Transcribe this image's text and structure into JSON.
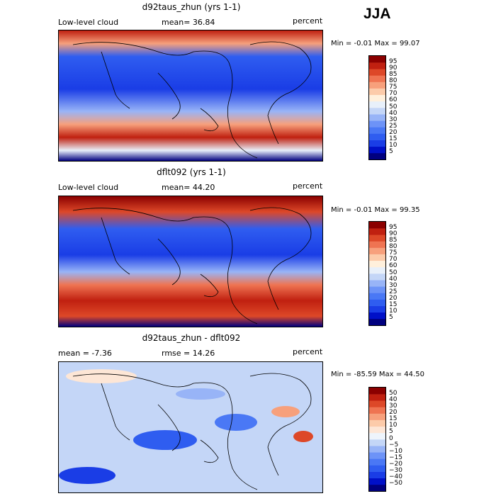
{
  "season": "JJA",
  "chart_data": [
    {
      "type": "heatmap",
      "title": "d92taus_zhun (yrs 1-1)",
      "left_label": "Low-level cloud",
      "center_label": "mean=  36.84",
      "right_label": "percent",
      "minmax": "Min =   -0.01  Max =   99.07",
      "colorbar": {
        "levels": [
          "5",
          "10",
          "15",
          "20",
          "25",
          "30",
          "40",
          "50",
          "60",
          "70",
          "75",
          "80",
          "85",
          "90",
          "95"
        ],
        "colors": [
          "#00007f",
          "#0010c8",
          "#1a3de6",
          "#2f5df0",
          "#4a78f5",
          "#6d93f7",
          "#98b4f7",
          "#c4d6f7",
          "#e8f0fa",
          "#fff0dc",
          "#fccbaa",
          "#f7a07c",
          "#ef7452",
          "#dd4828",
          "#c02010",
          "#8b0000"
        ]
      }
    },
    {
      "type": "heatmap",
      "title": "dflt092 (yrs 1-1)",
      "left_label": "Low-level cloud",
      "center_label": "mean=  44.20",
      "right_label": "percent",
      "minmax": "Min =   -0.01  Max =   99.35",
      "colorbar": {
        "levels": [
          "5",
          "10",
          "15",
          "20",
          "25",
          "30",
          "40",
          "50",
          "60",
          "70",
          "75",
          "80",
          "85",
          "90",
          "95"
        ],
        "colors": [
          "#00007f",
          "#0010c8",
          "#1a3de6",
          "#2f5df0",
          "#4a78f5",
          "#6d93f7",
          "#98b4f7",
          "#c4d6f7",
          "#e8f0fa",
          "#fff0dc",
          "#fccbaa",
          "#f7a07c",
          "#ef7452",
          "#dd4828",
          "#c02010",
          "#8b0000"
        ]
      }
    },
    {
      "type": "heatmap",
      "title": "d92taus_zhun - dflt092",
      "left_label": "mean =   -7.36",
      "center_label": "rmse =   14.26",
      "right_label": "percent",
      "minmax": "Min =  -85.59  Max =   44.50",
      "colorbar": {
        "levels": [
          "−50",
          "−40",
          "−30",
          "−20",
          "−15",
          "−10",
          "−5",
          "0",
          "5",
          "10",
          "15",
          "20",
          "30",
          "40",
          "50"
        ],
        "colors": [
          "#00007f",
          "#0010c8",
          "#1a3de6",
          "#2f5df0",
          "#4a78f5",
          "#6d93f7",
          "#98b4f7",
          "#c4d6f7",
          "#eef4fb",
          "#fde6d6",
          "#fccbaa",
          "#f7a07c",
          "#ef7452",
          "#dd4828",
          "#c02010",
          "#8b0000"
        ]
      }
    }
  ]
}
